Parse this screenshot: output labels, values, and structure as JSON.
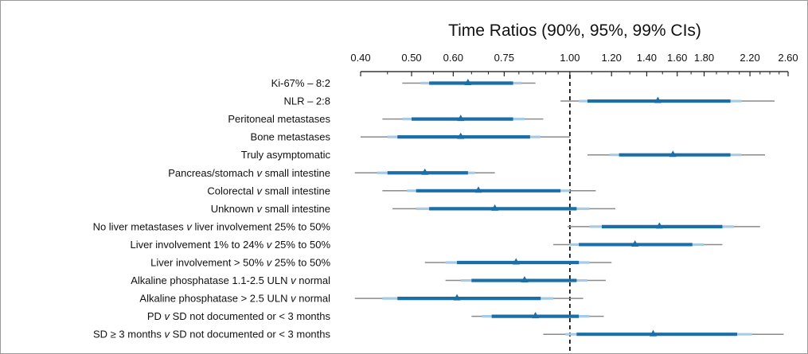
{
  "chart_data": {
    "type": "forest",
    "title": "Time Ratios (90%, 95%, 99% CIs)",
    "x_scale": "log",
    "xlim": [
      0.4,
      2.6
    ],
    "x_ticks": [
      0.4,
      0.5,
      0.6,
      0.75,
      1.0,
      1.2,
      1.4,
      1.6,
      1.8,
      2.2,
      2.6
    ],
    "x_tick_labels": [
      "0.40",
      "0.50",
      "0.60",
      "0.75",
      "1.00",
      "1.20",
      "1.40",
      "1.60",
      "1.80",
      "2.20",
      "2.60"
    ],
    "reference_line": 1.0,
    "colors": {
      "ci90": "#1b6fa8",
      "ci95": "#a6cbe6",
      "ci99": "#8a8a8a",
      "point": "#1b6fa8",
      "reference": "#111111"
    },
    "rows": [
      {
        "label": "Ki-67% – 8:2",
        "est": 0.64,
        "ci90": [
          0.54,
          0.78
        ],
        "ci95": [
          0.52,
          0.81
        ],
        "ci99": [
          0.48,
          0.86
        ]
      },
      {
        "label": "NLR – 2:8",
        "est": 1.47,
        "ci90": [
          1.08,
          2.02
        ],
        "ci95": [
          1.04,
          2.12
        ],
        "ci99": [
          0.96,
          2.45
        ]
      },
      {
        "label": "Peritoneal metastases",
        "est": 0.62,
        "ci90": [
          0.5,
          0.78
        ],
        "ci95": [
          0.48,
          0.82
        ],
        "ci99": [
          0.44,
          0.89
        ]
      },
      {
        "label": "Bone metastases",
        "est": 0.62,
        "ci90": [
          0.47,
          0.84
        ],
        "ci95": [
          0.45,
          0.88
        ],
        "ci99": [
          0.4,
          1.0
        ]
      },
      {
        "label": "Truly asymptomatic",
        "est": 1.57,
        "ci90": [
          1.24,
          2.02
        ],
        "ci95": [
          1.19,
          2.12
        ],
        "ci99": [
          1.08,
          2.35
        ]
      },
      {
        "label": "Pancreas/stomach",
        "italic": "v",
        "label_end": "small intestine",
        "est": 0.53,
        "ci90": [
          0.45,
          0.64
        ],
        "ci95": [
          0.43,
          0.66
        ],
        "ci99": [
          0.39,
          0.72
        ]
      },
      {
        "label": "Colorectal",
        "italic": "v",
        "label_end": "small intestine",
        "est": 0.67,
        "ci90": [
          0.51,
          0.96
        ],
        "ci95": [
          0.49,
          1.0
        ],
        "ci99": [
          0.44,
          1.12
        ]
      },
      {
        "label": "Unknown",
        "italic": "v",
        "label_end": "small intestine",
        "est": 0.72,
        "ci90": [
          0.54,
          1.03
        ],
        "ci95": [
          0.51,
          1.09
        ],
        "ci99": [
          0.46,
          1.22
        ]
      },
      {
        "label": "No liver metastases",
        "italic": "v",
        "label_end": "liver involvement 25% to 50%",
        "est": 1.48,
        "ci90": [
          1.15,
          1.95
        ],
        "ci95": [
          1.09,
          2.05
        ],
        "ci99": [
          0.99,
          2.3
        ]
      },
      {
        "label": "Liver involvement 1% to 24%",
        "italic": "v",
        "label_end": "25% to 50%",
        "est": 1.33,
        "ci90": [
          1.04,
          1.71
        ],
        "ci95": [
          1.0,
          1.8
        ],
        "ci99": [
          0.93,
          1.95
        ]
      },
      {
        "label": "Liver involvement > 50%",
        "italic": "v",
        "label_end": "25% to 50%",
        "est": 0.79,
        "ci90": [
          0.61,
          1.04
        ],
        "ci95": [
          0.58,
          1.09
        ],
        "ci99": [
          0.53,
          1.2
        ]
      },
      {
        "label": "Alkaline phosphatase 1.1-2.5 ULN",
        "italic": "v",
        "label_end": "normal",
        "est": 0.82,
        "ci90": [
          0.65,
          1.03
        ],
        "ci95": [
          0.62,
          1.08
        ],
        "ci99": [
          0.58,
          1.17
        ]
      },
      {
        "label": "Alkaline phosphatase > 2.5 ULN",
        "italic": "v",
        "label_end": "normal",
        "est": 0.61,
        "ci90": [
          0.47,
          0.88
        ],
        "ci95": [
          0.44,
          0.93
        ],
        "ci99": [
          0.39,
          1.06
        ]
      },
      {
        "label": "PD",
        "italic": "v",
        "label_end": "SD not documented or < 3 months",
        "est": 0.86,
        "ci90": [
          0.71,
          1.04
        ],
        "ci95": [
          0.68,
          1.09
        ],
        "ci99": [
          0.65,
          1.16
        ]
      },
      {
        "label": "SD ≥ 3 months",
        "italic": "v",
        "label_end": "SD not documented or < 3 months",
        "est": 1.44,
        "ci90": [
          1.03,
          2.08
        ],
        "ci95": [
          0.98,
          2.22
        ],
        "ci99": [
          0.89,
          2.55
        ]
      }
    ]
  }
}
